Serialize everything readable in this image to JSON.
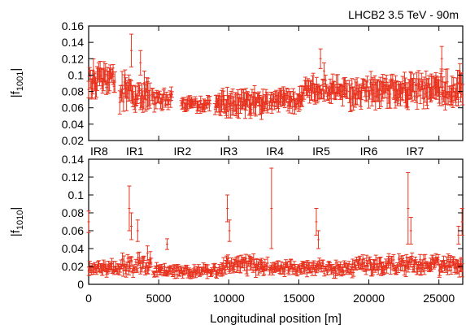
{
  "chart_data": [
    {
      "type": "scatter",
      "title": "LHCB2 3.5 TeV - 90m",
      "ylabel": "|f_1001|",
      "ylabel_main": "|f",
      "ylabel_sub": "1001",
      "ylabel_end": "|",
      "xlabel": "",
      "xlim": [
        0,
        26700
      ],
      "ylim": [
        0.02,
        0.16
      ],
      "yticks": [
        0.02,
        0.04,
        0.06,
        0.08,
        0.1,
        0.12,
        0.14,
        0.16
      ],
      "ytick_labels": [
        "0.02",
        "0.04",
        "0.06",
        "0.08",
        "0.1",
        "0.12",
        "0.14",
        "0.16"
      ],
      "xticks": [
        0,
        5000,
        10000,
        15000,
        20000,
        25000
      ],
      "grid": false,
      "error_bars": true,
      "color": "#e8321e",
      "ir_labels": [
        {
          "label": "IR8",
          "x": 0
        },
        {
          "label": "IR1",
          "x": 3300
        },
        {
          "label": "IR2",
          "x": 6700
        },
        {
          "label": "IR3",
          "x": 10000
        },
        {
          "label": "IR4",
          "x": 13300
        },
        {
          "label": "IR5",
          "x": 16600
        },
        {
          "label": "IR6",
          "x": 20000
        },
        {
          "label": "IR7",
          "x": 23300
        }
      ],
      "segments": [
        {
          "from": 0,
          "to": 1900,
          "base": 0.094,
          "spread": 0.012,
          "err": 0.012
        },
        {
          "from": 2200,
          "to": 4400,
          "base": 0.078,
          "spread": 0.014,
          "err": 0.014
        },
        {
          "from": 4500,
          "to": 6000,
          "base": 0.071,
          "spread": 0.008,
          "err": 0.008
        },
        {
          "from": 6600,
          "to": 8700,
          "base": 0.065,
          "spread": 0.005,
          "err": 0.006
        },
        {
          "from": 9000,
          "to": 12800,
          "base": 0.066,
          "spread": 0.008,
          "err": 0.012
        },
        {
          "from": 12900,
          "to": 15300,
          "base": 0.069,
          "spread": 0.008,
          "err": 0.01
        },
        {
          "from": 15300,
          "to": 18500,
          "base": 0.082,
          "spread": 0.008,
          "err": 0.01
        },
        {
          "from": 18600,
          "to": 26700,
          "base": 0.082,
          "spread": 0.012,
          "err": 0.014
        }
      ],
      "spikes": [
        {
          "x": 3050,
          "y": 0.13,
          "err": 0.02
        },
        {
          "x": 3700,
          "y": 0.115,
          "err": 0.015
        },
        {
          "x": 16550,
          "y": 0.12,
          "err": 0.012
        },
        {
          "x": 16800,
          "y": 0.105,
          "err": 0.01
        },
        {
          "x": 25200,
          "y": 0.12,
          "err": 0.015
        },
        {
          "x": 26500,
          "y": 0.102,
          "err": 0.012
        }
      ]
    },
    {
      "type": "scatter",
      "ylabel": "|f_1010|",
      "ylabel_main": "|f",
      "ylabel_sub": "1010",
      "ylabel_end": "|",
      "xlabel": "Longitudinal position [m]",
      "xlim": [
        0,
        26700
      ],
      "ylim": [
        0,
        0.14
      ],
      "yticks": [
        0,
        0.02,
        0.04,
        0.06,
        0.08,
        0.1,
        0.12,
        0.14
      ],
      "ytick_labels": [
        "0",
        "0.02",
        "0.04",
        "0.06",
        "0.08",
        "0.1",
        "0.12",
        "0.14"
      ],
      "xticks": [
        0,
        5000,
        10000,
        15000,
        20000,
        25000
      ],
      "xtick_labels": [
        "0",
        "5000",
        "10000",
        "15000",
        "20000",
        "25000"
      ],
      "grid": false,
      "error_bars": true,
      "color": "#e8321e",
      "segments": [
        {
          "from": 0,
          "to": 2400,
          "base": 0.018,
          "spread": 0.005,
          "err": 0.005
        },
        {
          "from": 2400,
          "to": 4500,
          "base": 0.022,
          "spread": 0.008,
          "err": 0.006
        },
        {
          "from": 4600,
          "to": 9500,
          "base": 0.015,
          "spread": 0.005,
          "err": 0.004
        },
        {
          "from": 9500,
          "to": 12800,
          "base": 0.022,
          "spread": 0.007,
          "err": 0.006
        },
        {
          "from": 12900,
          "to": 16000,
          "base": 0.018,
          "spread": 0.005,
          "err": 0.005
        },
        {
          "from": 16000,
          "to": 19000,
          "base": 0.018,
          "spread": 0.006,
          "err": 0.005
        },
        {
          "from": 19000,
          "to": 26700,
          "base": 0.022,
          "spread": 0.007,
          "err": 0.006
        }
      ],
      "spikes": [
        {
          "x": 0,
          "y": 0.07,
          "err": 0.012
        },
        {
          "x": 2900,
          "y": 0.085,
          "err": 0.025
        },
        {
          "x": 3050,
          "y": 0.065,
          "err": 0.015
        },
        {
          "x": 3500,
          "y": 0.06,
          "err": 0.012
        },
        {
          "x": 4200,
          "y": 0.035,
          "err": 0.008
        },
        {
          "x": 5600,
          "y": 0.045,
          "err": 0.006
        },
        {
          "x": 9900,
          "y": 0.085,
          "err": 0.015
        },
        {
          "x": 10050,
          "y": 0.06,
          "err": 0.012
        },
        {
          "x": 13050,
          "y": 0.085,
          "err": 0.045
        },
        {
          "x": 16250,
          "y": 0.07,
          "err": 0.015
        },
        {
          "x": 16400,
          "y": 0.05,
          "err": 0.01
        },
        {
          "x": 22800,
          "y": 0.085,
          "err": 0.04
        },
        {
          "x": 23000,
          "y": 0.06,
          "err": 0.015
        },
        {
          "x": 26400,
          "y": 0.055,
          "err": 0.01
        },
        {
          "x": 26650,
          "y": 0.07,
          "err": 0.015
        }
      ]
    }
  ]
}
